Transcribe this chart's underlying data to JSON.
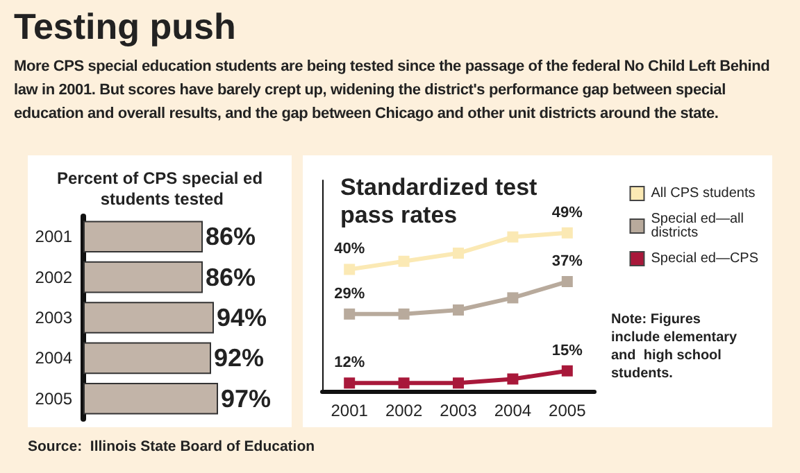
{
  "chart_data": [
    {
      "type": "other",
      "title": "Testing push",
      "subtitle": "More CPS special education students are being tested since the passage of the federal No Child Left Behind law in 2001. But scores have barely crept up, widening the district's performance gap between special education and overall results, and the gap between Chicago and other unit districts around the state.",
      "annotations": [
        "Source:  Illinois State Board of Education"
      ]
    },
    {
      "type": "bar",
      "orientation": "horizontal",
      "title": "Percent of CPS special ed students tested",
      "categories": [
        "2001",
        "2002",
        "2003",
        "2004",
        "2005"
      ],
      "values": [
        86,
        86,
        94,
        92,
        97
      ],
      "value_labels": [
        "86%",
        "86%",
        "94%",
        "92%",
        "97%"
      ],
      "color": "#c2b4a8",
      "grid": false
    },
    {
      "type": "line",
      "title": "Standardized test pass rates",
      "categories": [
        "2001",
        "2002",
        "2003",
        "2004",
        "2005"
      ],
      "marker": "square",
      "line_style": "solid",
      "grid": false,
      "legend": "right",
      "annotations": [
        "Note: Figures include elementary and  high school students."
      ],
      "series": [
        {
          "name": "All CPS students",
          "color": "#fbe9b4",
          "values": [
            40,
            42,
            44,
            48,
            49
          ],
          "value_labels": [
            "40%",
            null,
            null,
            null,
            "49%"
          ]
        },
        {
          "name": "Special ed—all districts",
          "color": "#b8aa9c",
          "values": [
            29,
            29,
            30,
            33,
            37
          ],
          "value_labels": [
            "29%",
            null,
            null,
            null,
            "37%"
          ]
        },
        {
          "name": "Special ed—CPS",
          "color": "#a8183a",
          "values": [
            12,
            12,
            12,
            13,
            15
          ],
          "value_labels": [
            "12%",
            null,
            null,
            null,
            "15%"
          ]
        }
      ]
    }
  ]
}
